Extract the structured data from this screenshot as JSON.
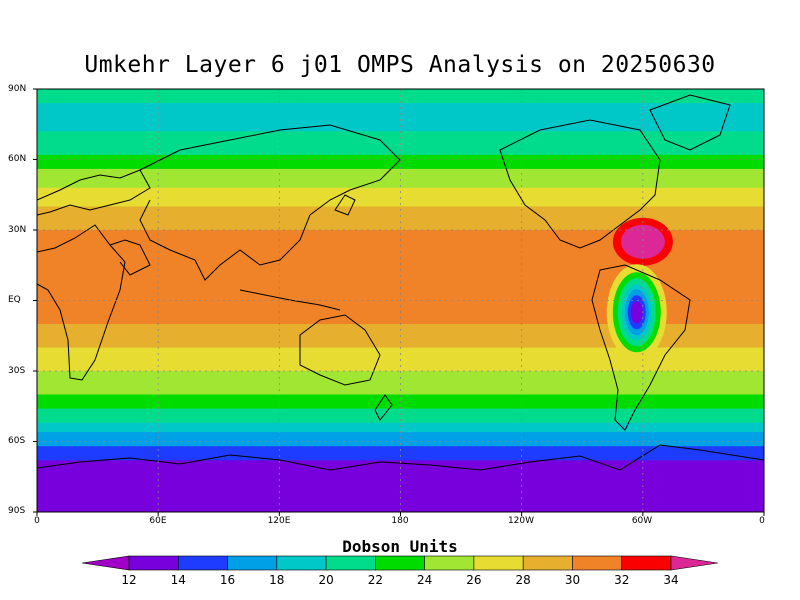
{
  "title": "Umkehr Layer 6 j01 OMPS Analysis on 20250630",
  "lat_labels": [
    "90N",
    "60N",
    "30N",
    "EQ",
    "30S",
    "60S",
    "90S"
  ],
  "lon_labels": [
    "0",
    "60E",
    "120E",
    "180",
    "120W",
    "60W",
    "0"
  ],
  "colorbar": {
    "title": "Dobson Units",
    "labels": [
      "12",
      "14",
      "16",
      "18",
      "20",
      "22",
      "24",
      "26",
      "28",
      "30",
      "32",
      "34"
    ],
    "colors": [
      "#a000c8",
      "#7800dc",
      "#1e3cff",
      "#00a0e6",
      "#00c8c8",
      "#00dc8c",
      "#00dc00",
      "#a0e632",
      "#e6dc32",
      "#e6af2d",
      "#f08228",
      "#fa0000",
      "#dc2896"
    ]
  },
  "field": {
    "units": "Dobson Units",
    "zonal_bands": [
      {
        "lat_from": 90,
        "lat_to": 84,
        "value": 20
      },
      {
        "lat_from": 84,
        "lat_to": 72,
        "value": 18
      },
      {
        "lat_from": 72,
        "lat_to": 62,
        "value": 20
      },
      {
        "lat_from": 62,
        "lat_to": 56,
        "value": 22
      },
      {
        "lat_from": 56,
        "lat_to": 48,
        "value": 24
      },
      {
        "lat_from": 48,
        "lat_to": 40,
        "value": 26
      },
      {
        "lat_from": 40,
        "lat_to": 30,
        "value": 28
      },
      {
        "lat_from": 30,
        "lat_to": 10,
        "value": 30
      },
      {
        "lat_from": 10,
        "lat_to": -10,
        "value": 30
      },
      {
        "lat_from": -10,
        "lat_to": -20,
        "value": 28
      },
      {
        "lat_from": -20,
        "lat_to": -30,
        "value": 26
      },
      {
        "lat_from": -30,
        "lat_to": -40,
        "value": 24
      },
      {
        "lat_from": -40,
        "lat_to": -46,
        "value": 22
      },
      {
        "lat_from": -46,
        "lat_to": -52,
        "value": 20
      },
      {
        "lat_from": -52,
        "lat_to": -56,
        "value": 18
      },
      {
        "lat_from": -56,
        "lat_to": -62,
        "value": 16
      },
      {
        "lat_from": -62,
        "lat_to": -68,
        "value": 14
      },
      {
        "lat_from": -68,
        "lat_to": -90,
        "value": 12
      }
    ],
    "features": [
      {
        "type": "max",
        "lon": -60,
        "lat": 25,
        "value": 33
      },
      {
        "type": "min",
        "lon": -63,
        "lat": -5,
        "value": 13
      }
    ]
  }
}
